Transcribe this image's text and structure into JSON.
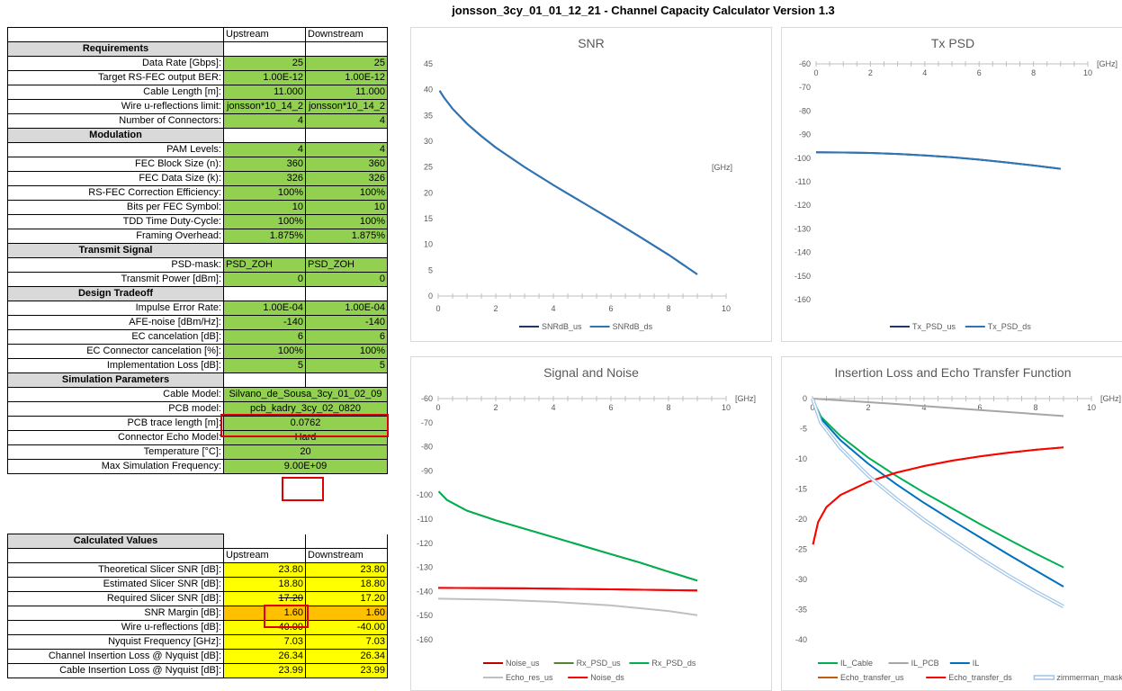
{
  "title": "jonsson_3cy_01_01_12_21 - Channel Capacity Calculator Version 1.3",
  "header": {
    "upstream": "Upstream",
    "downstream": "Downstream"
  },
  "sections": {
    "requirements": "Requirements",
    "modulation": "Modulation",
    "transmit": "Transmit Signal",
    "tradeoff": "Design Tradeoff",
    "simulation": "Simulation Parameters",
    "calculated": "Calculated Values"
  },
  "params": [
    {
      "label": "Data Rate [Gbps]:",
      "up": "25",
      "down": "25"
    },
    {
      "label": "Target RS-FEC output BER:",
      "up": "1.00E-12",
      "down": "1.00E-12"
    },
    {
      "label": "Cable Length [m]:",
      "up": "11.000",
      "down": "11.000"
    },
    {
      "label": "Wire u-reflections limit:",
      "up": "jonsson*10_14_2",
      "down": "jonsson*10_14_2"
    },
    {
      "label": "Number of Connectors:",
      "up": "4",
      "down": "4"
    },
    {
      "label": "PAM Levels:",
      "up": "4",
      "down": "4"
    },
    {
      "label": "FEC Block Size (n):",
      "up": "360",
      "down": "360"
    },
    {
      "label": "FEC Data Size (k):",
      "up": "326",
      "down": "326"
    },
    {
      "label": "RS-FEC Correction Efficiency:",
      "up": "100%",
      "down": "100%"
    },
    {
      "label": "Bits per FEC Symbol:",
      "up": "10",
      "down": "10"
    },
    {
      "label": "TDD Time Duty-Cycle:",
      "up": "100%",
      "down": "100%"
    },
    {
      "label": "Framing Overhead:",
      "up": "1.875%",
      "down": "1.875%"
    },
    {
      "label": "PSD-mask:",
      "up": "PSD_ZOH",
      "down": "PSD_ZOH"
    },
    {
      "label": "Transmit Power [dBm]:",
      "up": "0",
      "down": "0"
    },
    {
      "label": "Impulse Error Rate:",
      "up": "1.00E-04",
      "down": "1.00E-04"
    },
    {
      "label": "AFE-noise [dBm/Hz]:",
      "up": "-140",
      "down": "-140"
    },
    {
      "label": "EC cancelation [dB]:",
      "up": "6",
      "down": "6"
    },
    {
      "label": "EC Connector cancelation [%]:",
      "up": "100%",
      "down": "100%"
    },
    {
      "label": "Implementation Loss [dB]:",
      "up": "5",
      "down": "5"
    }
  ],
  "sim": [
    {
      "label": "Cable Model:",
      "value": "Silvano_de_Sousa_3cy_01_02_09"
    },
    {
      "label": "PCB model:",
      "value": "pcb_kadry_3cy_02_0820"
    },
    {
      "label": "PCB trace length [m]:",
      "value": "0.0762"
    },
    {
      "label": "Connector Echo Model:",
      "value": "Hard"
    },
    {
      "label": "Temperature [°C]:",
      "value": "20"
    },
    {
      "label": "Max Simulation Frequency:",
      "value": "9.00E+09"
    }
  ],
  "calc": [
    {
      "label": "Theoretical Slicer SNR [dB]:",
      "up": "23.80",
      "down": "23.80"
    },
    {
      "label": "Estimated Slicer SNR [dB]:",
      "up": "18.80",
      "down": "18.80"
    },
    {
      "label": "Required Slicer SNR [dB]:",
      "up": "17.20",
      "down": "17.20"
    },
    {
      "label": "SNR Margin [dB]:",
      "up": "1.60",
      "down": "1.60"
    },
    {
      "label": "Wire u-reflections [dB]:",
      "up": "-40.00",
      "down": "-40.00"
    },
    {
      "label": "Nyquist Frequency [GHz]:",
      "up": "7.03",
      "down": "7.03"
    },
    {
      "label": "Channel Insertion Loss @ Nyquist [dB]:",
      "up": "26.34",
      "down": "26.34"
    },
    {
      "label": "Cable Insertion Loss @ Nyquist [dB]:",
      "up": "23.99",
      "down": "23.99"
    }
  ],
  "chart_data": [
    {
      "type": "line",
      "title": "SNR",
      "xunit": "[GHz]",
      "xlim": [
        0,
        10
      ],
      "ylim": [
        0,
        45
      ],
      "xticks": [
        0,
        2,
        4,
        6,
        8,
        10
      ],
      "yticks": [
        0,
        5,
        10,
        15,
        20,
        25,
        30,
        35,
        40,
        45
      ],
      "series": [
        {
          "name": "SNRdB_us",
          "color": "#1f3864",
          "points": [
            [
              0.05,
              39.8
            ],
            [
              0.2,
              38.5
            ],
            [
              0.5,
              36.3
            ],
            [
              1,
              33.4
            ],
            [
              1.5,
              31.0
            ],
            [
              2,
              28.8
            ],
            [
              3,
              25.0
            ],
            [
              4,
              21.5
            ],
            [
              5,
              18.2
            ],
            [
              6,
              14.9
            ],
            [
              7,
              11.5
            ],
            [
              8,
              8.0
            ],
            [
              8.5,
              6.1
            ],
            [
              9,
              4.2
            ]
          ]
        },
        {
          "name": "SNRdB_ds",
          "color": "#2e75b6",
          "points": [
            [
              0.05,
              39.8
            ],
            [
              0.2,
              38.5
            ],
            [
              0.5,
              36.3
            ],
            [
              1,
              33.4
            ],
            [
              1.5,
              31.0
            ],
            [
              2,
              28.8
            ],
            [
              3,
              25.0
            ],
            [
              4,
              21.5
            ],
            [
              5,
              18.2
            ],
            [
              6,
              14.9
            ],
            [
              7,
              11.5
            ],
            [
              8,
              8.0
            ],
            [
              8.5,
              6.1
            ],
            [
              9,
              4.2
            ]
          ]
        }
      ]
    },
    {
      "type": "line",
      "title": "Tx PSD",
      "xunit": "[GHz]",
      "xlim": [
        0,
        10
      ],
      "ylim": [
        -160,
        -60
      ],
      "xticks": [
        0,
        2,
        4,
        6,
        8,
        10
      ],
      "yticks": [
        -60,
        -70,
        -80,
        -90,
        -100,
        -110,
        -120,
        -130,
        -140,
        -150,
        -160
      ],
      "series": [
        {
          "name": "Tx_PSD_us",
          "color": "#1f3864",
          "points": [
            [
              0,
              -97.5
            ],
            [
              1,
              -97.6
            ],
            [
              2,
              -97.8
            ],
            [
              3,
              -98.2
            ],
            [
              4,
              -98.8
            ],
            [
              5,
              -99.6
            ],
            [
              6,
              -100.6
            ],
            [
              7,
              -101.8
            ],
            [
              8,
              -103.1
            ],
            [
              9,
              -104.5
            ]
          ]
        },
        {
          "name": "Tx_PSD_ds",
          "color": "#2e75b6",
          "points": [
            [
              0,
              -97.5
            ],
            [
              1,
              -97.6
            ],
            [
              2,
              -97.8
            ],
            [
              3,
              -98.2
            ],
            [
              4,
              -98.8
            ],
            [
              5,
              -99.6
            ],
            [
              6,
              -100.6
            ],
            [
              7,
              -101.8
            ],
            [
              8,
              -103.1
            ],
            [
              9,
              -104.5
            ]
          ]
        }
      ]
    },
    {
      "type": "line",
      "title": "Signal and Noise",
      "xunit": "[GHz]",
      "xlim": [
        0,
        10
      ],
      "ylim": [
        -160,
        -60
      ],
      "xticks": [
        0,
        2,
        4,
        6,
        8,
        10
      ],
      "yticks": [
        -60,
        -70,
        -80,
        -90,
        -100,
        -110,
        -120,
        -130,
        -140,
        -150,
        -160
      ],
      "series": [
        {
          "name": "Noise_us",
          "color": "#c00000",
          "points": [
            [
              0,
              -138.5
            ],
            [
              3,
              -138.7
            ],
            [
              6,
              -139.1
            ],
            [
              9,
              -139.6
            ]
          ]
        },
        {
          "name": "Rx_PSD_us",
          "color": "#548235",
          "points": [
            [
              0.02,
              -98.5
            ],
            [
              0.3,
              -102
            ],
            [
              1,
              -106.5
            ],
            [
              2,
              -110.5
            ],
            [
              3,
              -114
            ],
            [
              4,
              -117.5
            ],
            [
              5,
              -121
            ],
            [
              6,
              -124.5
            ],
            [
              7,
              -128
            ],
            [
              8,
              -131.8
            ],
            [
              9,
              -135.5
            ]
          ]
        },
        {
          "name": "Rx_PSD_ds",
          "color": "#00b050",
          "points": [
            [
              0.02,
              -98.5
            ],
            [
              0.3,
              -102
            ],
            [
              1,
              -106.5
            ],
            [
              2,
              -110.5
            ],
            [
              3,
              -114
            ],
            [
              4,
              -117.5
            ],
            [
              5,
              -121
            ],
            [
              6,
              -124.5
            ],
            [
              7,
              -128
            ],
            [
              8,
              -131.8
            ],
            [
              9,
              -135.5
            ]
          ]
        },
        {
          "name": "Echo_res_us",
          "color": "#bfbfbf",
          "points": [
            [
              0,
              -143
            ],
            [
              2,
              -143.4
            ],
            [
              4,
              -144.3
            ],
            [
              6,
              -145.8
            ],
            [
              8,
              -148.1
            ],
            [
              9,
              -149.8
            ]
          ]
        },
        {
          "name": "Noise_ds",
          "color": "#ff0000",
          "points": [
            [
              0,
              -138.5
            ],
            [
              3,
              -138.7
            ],
            [
              6,
              -139.1
            ],
            [
              9,
              -139.6
            ]
          ]
        }
      ]
    },
    {
      "type": "line",
      "title": "Insertion Loss and Echo Transfer Function",
      "xunit": "[GHz]",
      "xlim": [
        0,
        10
      ],
      "ylim": [
        -40,
        0
      ],
      "xticks": [
        0,
        2,
        4,
        6,
        8,
        10
      ],
      "yticks": [
        0,
        -5,
        -10,
        -15,
        -20,
        -25,
        -30,
        -35,
        -40
      ],
      "series": [
        {
          "name": "IL_Cable",
          "color": "#00b050",
          "points": [
            [
              0,
              0
            ],
            [
              0.3,
              -3
            ],
            [
              1,
              -6.2
            ],
            [
              2,
              -9.8
            ],
            [
              3,
              -12.8
            ],
            [
              4,
              -15.6
            ],
            [
              5,
              -18.2
            ],
            [
              6,
              -20.8
            ],
            [
              7,
              -23.3
            ],
            [
              8,
              -25.7
            ],
            [
              9,
              -28.0
            ]
          ]
        },
        {
          "name": "IL_PCB",
          "color": "#a6a6a6",
          "points": [
            [
              0,
              0
            ],
            [
              3,
              -0.9
            ],
            [
              6,
              -1.9
            ],
            [
              9,
              -2.9
            ]
          ]
        },
        {
          "name": "IL",
          "color": "#0070c0",
          "points": [
            [
              0,
              0
            ],
            [
              0.3,
              -3.3
            ],
            [
              1,
              -6.9
            ],
            [
              2,
              -10.8
            ],
            [
              3,
              -14.2
            ],
            [
              4,
              -17.3
            ],
            [
              5,
              -20.2
            ],
            [
              6,
              -23.0
            ],
            [
              7,
              -25.8
            ],
            [
              8,
              -28.5
            ],
            [
              9,
              -31.2
            ]
          ]
        },
        {
          "name": "Echo_transfer_us",
          "color": "#c55a11",
          "points": [
            [
              0.02,
              -24.2
            ],
            [
              0.2,
              -20.5
            ],
            [
              0.5,
              -18
            ],
            [
              1,
              -16
            ],
            [
              2,
              -13.8
            ],
            [
              3,
              -12.3
            ],
            [
              4,
              -11.2
            ],
            [
              5,
              -10.3
            ],
            [
              6,
              -9.6
            ],
            [
              7,
              -9
            ],
            [
              8,
              -8.5
            ],
            [
              9,
              -8.1
            ]
          ]
        },
        {
          "name": "Echo_transfer_ds",
          "color": "#ff0000",
          "points": [
            [
              0.02,
              -24.2
            ],
            [
              0.2,
              -20.5
            ],
            [
              0.5,
              -18
            ],
            [
              1,
              -16
            ],
            [
              2,
              -13.8
            ],
            [
              3,
              -12.3
            ],
            [
              4,
              -11.2
            ],
            [
              5,
              -10.3
            ],
            [
              6,
              -9.6
            ],
            [
              7,
              -9
            ],
            [
              8,
              -8.5
            ],
            [
              9,
              -8.1
            ]
          ]
        },
        {
          "name": "zimmerman_mask",
          "color": "#9dc3e6",
          "double": true,
          "points": [
            [
              0,
              0
            ],
            [
              0.3,
              -4
            ],
            [
              1,
              -8.2
            ],
            [
              2,
              -12.8
            ],
            [
              3,
              -16.6
            ],
            [
              4,
              -20.1
            ],
            [
              5,
              -23.3
            ],
            [
              6,
              -26.4
            ],
            [
              7,
              -29.3
            ],
            [
              8,
              -32
            ],
            [
              9,
              -34.5
            ]
          ]
        }
      ]
    }
  ]
}
